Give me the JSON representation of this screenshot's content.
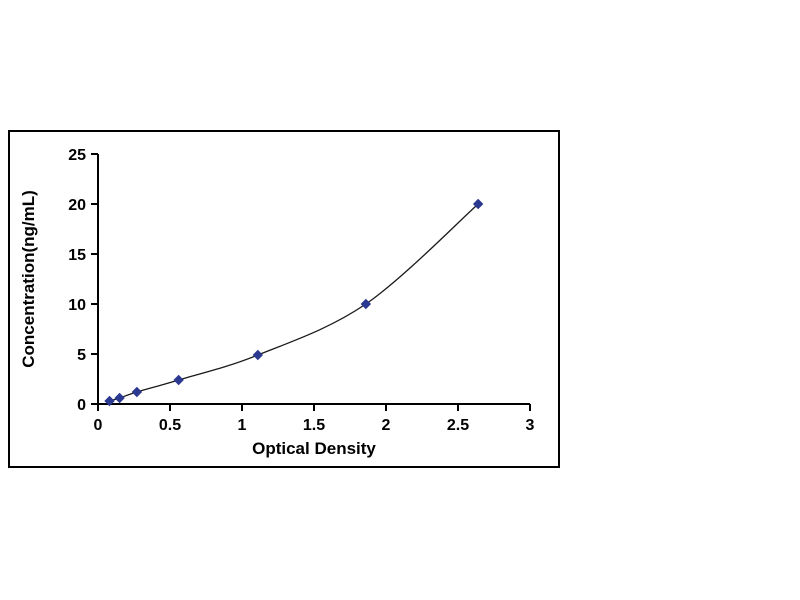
{
  "chart_data": {
    "type": "line",
    "title": "",
    "xlabel": "Optical Density",
    "ylabel": "Concentration(ng/mL)",
    "x": [
      0.08,
      0.15,
      0.27,
      0.56,
      1.11,
      1.86,
      2.64
    ],
    "y": [
      0.3,
      0.6,
      1.2,
      2.4,
      4.9,
      10,
      20
    ],
    "xlim": [
      0,
      3
    ],
    "ylim": [
      0,
      25
    ],
    "xticks": [
      0,
      0.5,
      1,
      1.5,
      2,
      2.5,
      3
    ],
    "yticks": [
      0,
      5,
      10,
      15,
      20,
      25
    ],
    "grid": false,
    "legend_position": "none",
    "marker": "diamond",
    "colors": {
      "marker": "#2b3990",
      "line": "#1a1a1a",
      "axis": "#000000",
      "frame_border": "#000000",
      "background": "#ffffff"
    }
  }
}
